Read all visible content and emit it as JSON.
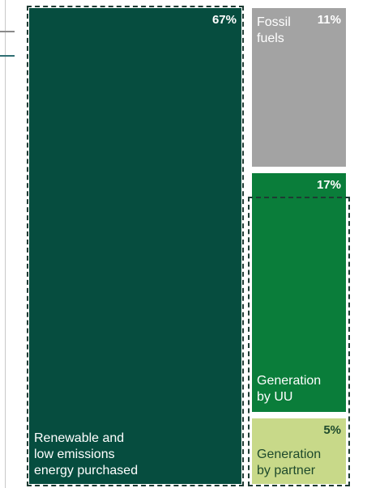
{
  "chart_data": {
    "type": "treemap",
    "segments": [
      {
        "label": "Renewable and\nlow emissions\nenergy purchased",
        "value": 67,
        "value_label": "67%",
        "color": "#064d3f",
        "text_color": "#ffffff"
      },
      {
        "label": "Fossil\nfuels",
        "value": 11,
        "value_label": "11%",
        "color": "#a3a3a3",
        "text_color": "#ffffff"
      },
      {
        "label": "Generation\nby UU",
        "value": 17,
        "value_label": "17%",
        "color": "#0a7d3a",
        "text_color": "#ffffff"
      },
      {
        "label": "Generation\nby partner",
        "value": 5,
        "value_label": "5%",
        "color": "#c8d989",
        "text_color": "#1e4a2c"
      }
    ],
    "colors": {
      "left_border": "#c9c9c9",
      "dash_marks": [
        "#8a8a8a",
        "#2f6f73"
      ],
      "outline": "#1e3b33"
    }
  }
}
